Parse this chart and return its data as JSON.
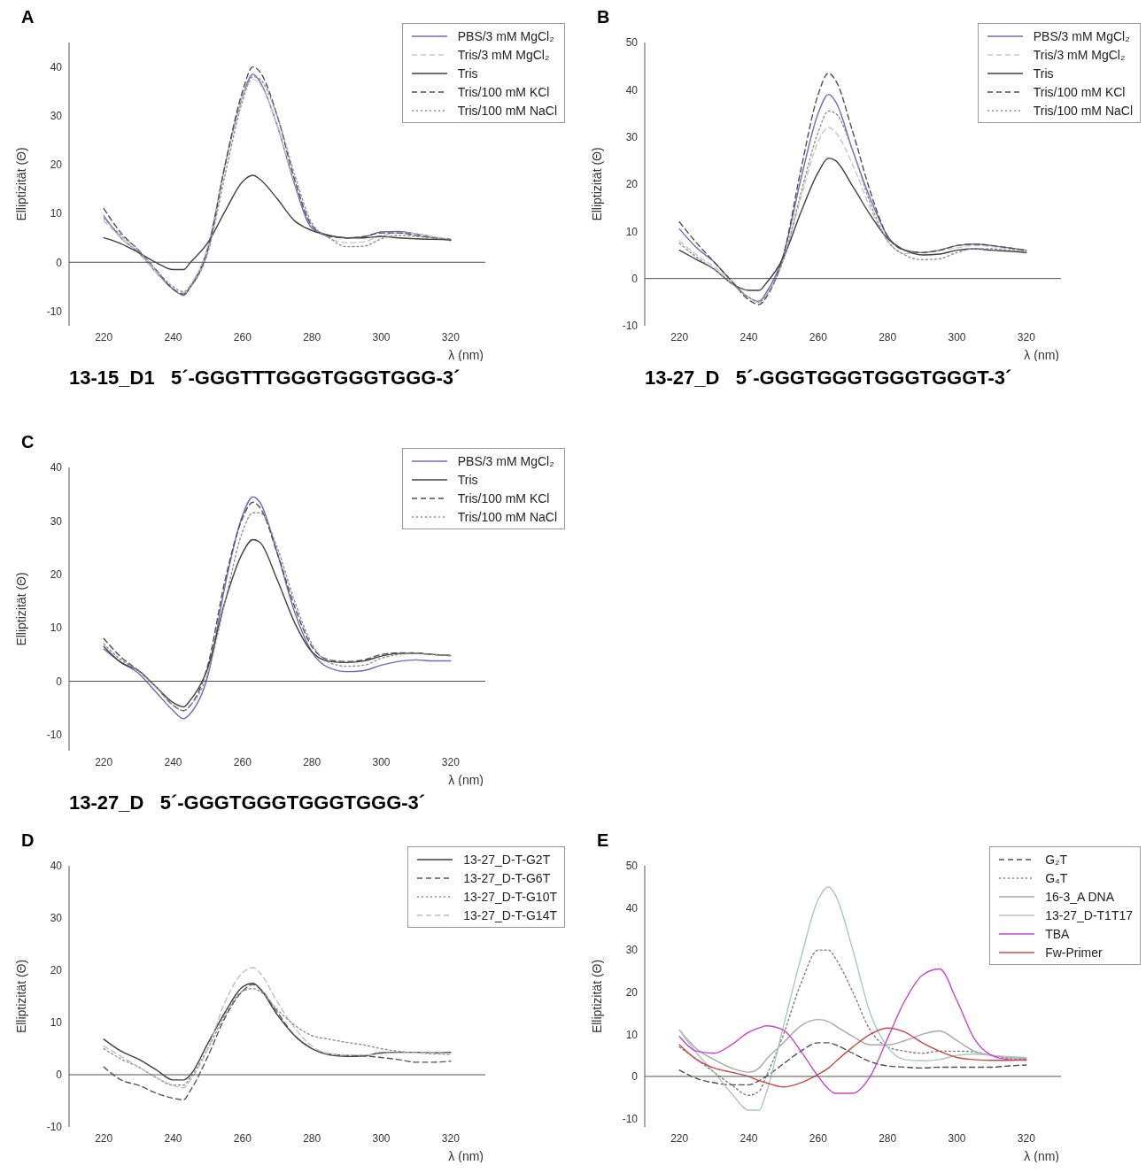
{
  "chart_data": [
    {
      "type": "line",
      "title": "A",
      "subtitle": "13-15_D1   5´-GGGTTTGGGTGGGTGGG-3´",
      "xlabel": "λ (nm)",
      "ylabel": "Elliptizität (Θ)",
      "xlim": [
        210,
        330
      ],
      "xticks": [
        220,
        240,
        260,
        280,
        300,
        320
      ],
      "ylim": [
        -13,
        45
      ],
      "yticks": [
        -10,
        0,
        10,
        20,
        30,
        40
      ],
      "legend": "top right",
      "x": [
        220,
        225,
        230,
        235,
        240,
        243,
        245,
        250,
        255,
        260,
        263,
        265,
        270,
        275,
        280,
        285,
        290,
        295,
        300,
        305,
        310,
        315,
        320
      ],
      "series": [
        {
          "name": "PBS/3 mM MgCl₂",
          "color": "#6b6bc0",
          "line_style": "solid",
          "values": [
            9.5,
            5,
            2,
            -2,
            -5.5,
            -6.8,
            -5,
            3,
            20,
            34,
            38.5,
            37,
            28,
            16,
            7,
            5.5,
            5,
            5.2,
            6.2,
            6.3,
            5.8,
            5.2,
            4.5
          ]
        },
        {
          "name": "Tris/3 mM MgCl₂",
          "color": "#c8c8c8",
          "line_style": "dashed",
          "values": [
            8.5,
            5,
            2,
            -2,
            -5.5,
            -6.2,
            -4.5,
            3,
            20,
            34,
            37.5,
            36.5,
            28,
            16.5,
            7.5,
            5,
            4,
            4.2,
            5.5,
            6,
            5.8,
            5.2,
            4.8
          ]
        },
        {
          "name": "Tris",
          "color": "#404040",
          "line_style": "solid",
          "values": [
            5,
            3.8,
            2,
            0,
            -1.5,
            -1.5,
            0,
            4,
            10.5,
            16.5,
            17.8,
            17,
            13,
            8.5,
            6.5,
            5.5,
            5,
            5,
            5.3,
            5,
            4.8,
            4.7,
            4.6
          ]
        },
        {
          "name": "Tris/100 mM KCl",
          "color": "#505050",
          "line_style": "dashed",
          "values": [
            11,
            6,
            2.5,
            -1.5,
            -5.5,
            -6.5,
            -5,
            2.5,
            20,
            35,
            40,
            39,
            30,
            17,
            7.5,
            5.3,
            5,
            5.3,
            6,
            6,
            5.5,
            5,
            4.5
          ]
        },
        {
          "name": "Tris/100 mM NaCl",
          "color": "#909090",
          "line_style": "dotted",
          "values": [
            9,
            5.5,
            2.5,
            -1.5,
            -5,
            -6,
            -5,
            2,
            18,
            33,
            38,
            37.5,
            30,
            18,
            8,
            5,
            3.2,
            3.3,
            4.8,
            5.5,
            5.3,
            5,
            4.8
          ]
        }
      ]
    },
    {
      "type": "line",
      "title": "B",
      "subtitle": "13-27_D   5´-GGGTGGGTGGGTGGGT-3´",
      "xlabel": "λ (nm)",
      "ylabel": "Elliptizität (Θ)",
      "xlim": [
        210,
        330
      ],
      "xticks": [
        220,
        240,
        260,
        280,
        300,
        320
      ],
      "ylim": [
        -10,
        50
      ],
      "yticks": [
        -10,
        0,
        10,
        20,
        30,
        40,
        50
      ],
      "legend": "top right",
      "x": [
        220,
        225,
        230,
        235,
        240,
        243,
        245,
        250,
        255,
        260,
        263,
        265,
        270,
        275,
        280,
        285,
        290,
        295,
        300,
        305,
        310,
        315,
        320
      ],
      "series": [
        {
          "name": "PBS/3 mM MgCl₂",
          "color": "#6b6bc0",
          "line_style": "solid",
          "values": [
            10.5,
            6.5,
            3.5,
            -0.5,
            -4,
            -4.8,
            -3,
            5,
            21,
            35,
            39,
            37.5,
            27,
            17,
            9,
            6,
            5.5,
            6,
            7,
            7.3,
            7,
            6.5,
            6
          ]
        },
        {
          "name": "Tris/3 mM MgCl₂",
          "color": "#c8c8c8",
          "line_style": "dashed",
          "values": [
            8,
            5,
            2.5,
            -0.5,
            -4,
            -5,
            -3.5,
            4,
            17,
            29,
            32,
            31,
            24,
            15,
            8,
            5.3,
            5.5,
            6,
            6.5,
            7,
            6.8,
            6.3,
            6
          ]
        },
        {
          "name": "Tris",
          "color": "#404040",
          "line_style": "solid",
          "values": [
            6,
            4,
            2,
            -1,
            -2.5,
            -2.5,
            -1,
            4.5,
            14,
            22.5,
            25.5,
            25,
            19.5,
            13.5,
            8.5,
            6,
            5,
            5.2,
            6,
            6.3,
            6,
            5.8,
            5.5
          ]
        },
        {
          "name": "Tris/100 mM KCl",
          "color": "#505050",
          "line_style": "dashed",
          "values": [
            12,
            7.5,
            3.5,
            -0.5,
            -4.5,
            -5.5,
            -4,
            5,
            23,
            39,
            43.5,
            42,
            31,
            18.5,
            9,
            6,
            5.5,
            6,
            7,
            7.3,
            7,
            6.5,
            6
          ]
        },
        {
          "name": "Tris/100 mM NaCl",
          "color": "#909090",
          "line_style": "dotted",
          "values": [
            7.5,
            4.5,
            2,
            -1,
            -4,
            -5,
            -3.5,
            4,
            18,
            31,
            35.5,
            35,
            27,
            16,
            8,
            5,
            4,
            4.2,
            5.5,
            6.3,
            6.3,
            6,
            5.8
          ]
        }
      ]
    },
    {
      "type": "line",
      "title": "C",
      "subtitle": "13-27_D   5´-GGGTGGGTGGGTGGG-3´",
      "xlabel": "λ (nm)",
      "ylabel": "Elliptizität (Θ)",
      "xlim": [
        210,
        330
      ],
      "xticks": [
        220,
        240,
        260,
        280,
        300,
        320
      ],
      "ylim": [
        -13,
        40
      ],
      "yticks": [
        -10,
        0,
        10,
        20,
        30,
        40
      ],
      "legend": "top right",
      "x": [
        220,
        225,
        230,
        235,
        240,
        243,
        245,
        250,
        255,
        260,
        263,
        265,
        270,
        275,
        280,
        285,
        290,
        295,
        300,
        305,
        310,
        315,
        320
      ],
      "series": [
        {
          "name": "PBS/3 mM MgCl₂",
          "color": "#6b6bc0",
          "line_style": "solid",
          "values": [
            6,
            3.5,
            1.5,
            -2,
            -5.5,
            -7,
            -6,
            1,
            18,
            31,
            34.5,
            33.5,
            24,
            13,
            5.5,
            2.5,
            1.8,
            2,
            3,
            3.7,
            4,
            3.8,
            3.8
          ]
        },
        {
          "name": "Tris",
          "color": "#404040",
          "line_style": "solid",
          "values": [
            6.5,
            3.5,
            2,
            -1,
            -4,
            -4.8,
            -3.5,
            2.5,
            15,
            24,
            26.5,
            26,
            19,
            11,
            5.5,
            3.7,
            3.5,
            3.8,
            4.7,
            5.2,
            5.2,
            5,
            4.8
          ]
        },
        {
          "name": "Tris/100 mM KCl",
          "color": "#505050",
          "line_style": "dashed",
          "values": [
            8,
            4.5,
            2,
            -1,
            -4.5,
            -5.5,
            -4.5,
            3,
            19,
            30.5,
            33.5,
            32.5,
            24,
            14,
            6.5,
            4,
            3.7,
            4,
            5,
            5.3,
            5.3,
            5,
            4.8
          ]
        },
        {
          "name": "Tris/100 mM NaCl",
          "color": "#909090",
          "line_style": "dotted",
          "values": [
            7,
            4,
            2,
            -1,
            -4.5,
            -5.5,
            -4.5,
            1.5,
            15,
            28,
            31.5,
            31.5,
            25,
            15,
            7,
            3.5,
            2.8,
            3,
            4.3,
            5,
            5.2,
            5,
            4.8
          ]
        }
      ]
    },
    {
      "type": "line",
      "title": "D",
      "xlabel": "λ (nm)",
      "ylabel": "Elliptizität (Θ)",
      "xlim": [
        210,
        330
      ],
      "xticks": [
        220,
        240,
        260,
        280,
        300,
        320
      ],
      "ylim": [
        -10,
        40
      ],
      "yticks": [
        -10,
        0,
        10,
        20,
        30,
        40
      ],
      "legend": "top right",
      "x": [
        220,
        225,
        230,
        235,
        240,
        243,
        245,
        250,
        255,
        260,
        263,
        265,
        270,
        275,
        280,
        285,
        290,
        295,
        300,
        305,
        310,
        315,
        320
      ],
      "series": [
        {
          "name": "13-27_D-T-G2T",
          "color": "#404040",
          "line_style": "solid",
          "values": [
            6.8,
            4.5,
            3,
            1,
            -1,
            -1,
            0,
            6,
            12,
            16.8,
            17.5,
            16.5,
            11.5,
            7.5,
            5,
            3.8,
            3.5,
            3.6,
            4.2,
            4.3,
            4.3,
            4.2,
            4.3
          ]
        },
        {
          "name": "13-27_D-T-G6T",
          "color": "#555555",
          "line_style": "dashed",
          "values": [
            1.5,
            -1,
            -2,
            -3.5,
            -4.5,
            -4.8,
            -3,
            3.5,
            11,
            16,
            17.3,
            16.5,
            12,
            7.5,
            5,
            4,
            3.7,
            3.6,
            3.3,
            2.9,
            2.4,
            2.4,
            2.6
          ]
        },
        {
          "name": "13-27_D-T-G10T",
          "color": "#909090",
          "line_style": "dotted",
          "values": [
            5,
            3,
            1.5,
            -0.5,
            -2,
            -2,
            -0.5,
            5,
            11.5,
            16,
            16.5,
            16,
            12.5,
            9.5,
            7.5,
            6.8,
            6.2,
            5.7,
            5,
            4.5,
            4.2,
            4,
            3.9
          ]
        },
        {
          "name": "13-27_D-T-G14T",
          "color": "#c0c0c0",
          "line_style": "dashed",
          "values": [
            5.5,
            3.5,
            1.5,
            -0.5,
            -2,
            -2.5,
            -1,
            5,
            14,
            19.5,
            20.5,
            19.5,
            14,
            9,
            5.5,
            4,
            3.8,
            3.8,
            4,
            4.2,
            4.2,
            4.1,
            4
          ]
        }
      ]
    },
    {
      "type": "line",
      "title": "E",
      "xlabel": "λ (nm)",
      "ylabel": "Elliptizität (Θ)",
      "xlim": [
        210,
        330
      ],
      "xticks": [
        220,
        240,
        260,
        280,
        300,
        320
      ],
      "ylim": [
        -12,
        50
      ],
      "yticks": [
        -10,
        0,
        10,
        20,
        30,
        40,
        50
      ],
      "legend": "top right",
      "x": [
        220,
        225,
        230,
        235,
        240,
        243,
        245,
        250,
        255,
        260,
        263,
        265,
        270,
        275,
        280,
        285,
        290,
        295,
        300,
        305,
        310,
        315,
        320
      ],
      "series": [
        {
          "name": "G₂T",
          "color": "#505050",
          "line_style": "dashed",
          "values": [
            1.5,
            -0.5,
            -1.5,
            -2,
            -2,
            -1,
            0,
            3,
            6,
            8,
            8,
            7.5,
            5.5,
            3.5,
            2.5,
            2.2,
            2,
            2.2,
            2.2,
            2.2,
            2.2,
            2.5,
            2.7
          ]
        },
        {
          "name": "G₄T",
          "color": "#808080",
          "line_style": "dotted",
          "values": [
            7,
            4,
            1,
            -2,
            -4.5,
            -3.5,
            0,
            10,
            22,
            30,
            30,
            28,
            20,
            11,
            7,
            6,
            5.5,
            6,
            6,
            5.8,
            5,
            4.3,
            4
          ]
        },
        {
          "name": "16-3_A DNA",
          "color": "#a8a8a8",
          "line_style": "solid",
          "values": [
            11,
            6.5,
            4,
            2,
            1,
            2,
            4,
            8,
            12,
            13.5,
            13,
            12,
            9.5,
            7.5,
            7.5,
            8.5,
            10,
            10.8,
            8.5,
            6,
            5,
            4.5,
            4.3
          ]
        },
        {
          "name": "13-27_D-T1T17",
          "color": "#a8c8c0",
          "line_style": "solid",
          "values": [
            11,
            5.5,
            1,
            -4,
            -8,
            -8,
            -4,
            12,
            28,
            42,
            45,
            43,
            30,
            15,
            7,
            4,
            3.7,
            4,
            5,
            5.3,
            5,
            4.7,
            4.5
          ]
        },
        {
          "name": "TBA",
          "color": "#d040d0",
          "line_style": "solid",
          "values": [
            9.5,
            6,
            5.5,
            7.5,
            10.5,
            11.5,
            12,
            11,
            6,
            0,
            -3,
            -4,
            -4,
            0,
            9,
            18,
            24,
            25.5,
            18,
            9,
            5,
            4,
            3.8
          ]
        },
        {
          "name": "Fw-Primer",
          "color": "#d04848",
          "line_style": "solid",
          "values": [
            7.5,
            4,
            2,
            1,
            0,
            -1,
            -1.5,
            -2.5,
            -1.5,
            0.5,
            2,
            3.5,
            7,
            10,
            11.5,
            10.5,
            8,
            6,
            4.5,
            4,
            3.8,
            3.8,
            4
          ]
        }
      ]
    }
  ]
}
